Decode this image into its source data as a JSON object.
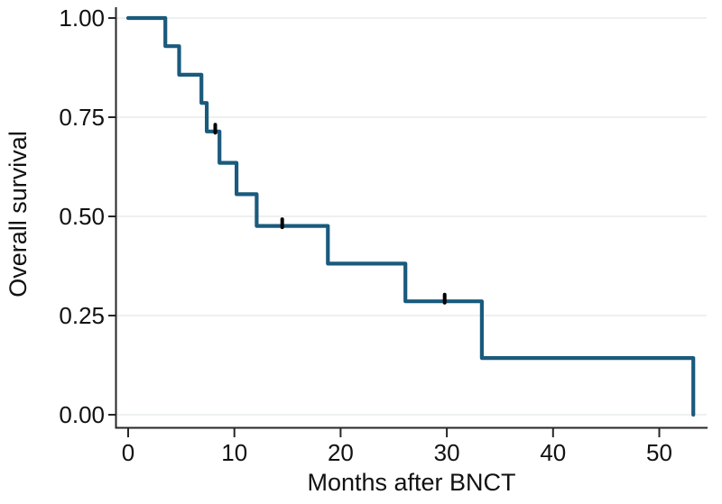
{
  "figure": {
    "background": "#ffffff"
  },
  "chart_data": {
    "type": "line",
    "subtype": "kaplan_meier_step",
    "title": "",
    "xlabel": "Months after BNCT",
    "ylabel": "Overall survival",
    "xlim": [
      0,
      54.5
    ],
    "ylim": [
      0.0,
      1.0
    ],
    "grid": "horizontal-only",
    "legend_position": "none",
    "x_ticks": [
      {
        "value": 0,
        "label": "0"
      },
      {
        "value": 10,
        "label": "10"
      },
      {
        "value": 20,
        "label": "20"
      },
      {
        "value": 30,
        "label": "30"
      },
      {
        "value": 40,
        "label": "40"
      },
      {
        "value": 50,
        "label": "50"
      }
    ],
    "y_ticks": [
      {
        "value": 0.0,
        "label": "0.00"
      },
      {
        "value": 0.25,
        "label": "0.25"
      },
      {
        "value": 0.5,
        "label": "0.50"
      },
      {
        "value": 0.75,
        "label": "0.75"
      },
      {
        "value": 1.0,
        "label": "1.00"
      }
    ],
    "series": [
      {
        "name": "Overall survival",
        "color": "#1a5a7d",
        "start": {
          "t": 0,
          "s": 1.0
        },
        "events": [
          {
            "t": 3.5,
            "s_after": 0.929
          },
          {
            "t": 4.8,
            "s_after": 0.857
          },
          {
            "t": 6.9,
            "s_after": 0.786
          },
          {
            "t": 7.4,
            "s_after": 0.714
          },
          {
            "t": 8.6,
            "s_after": 0.635
          },
          {
            "t": 10.2,
            "s_after": 0.556
          },
          {
            "t": 12.1,
            "s_after": 0.476
          },
          {
            "t": 18.8,
            "s_after": 0.381
          },
          {
            "t": 26.1,
            "s_after": 0.286
          },
          {
            "t": 33.3,
            "s_after": 0.143
          },
          {
            "t": 53.2,
            "s_after": 0.0
          }
        ],
        "censored": [
          {
            "t": 8.2,
            "s": 0.714
          },
          {
            "t": 14.5,
            "s": 0.476
          },
          {
            "t": 29.8,
            "s": 0.286
          }
        ],
        "censor_color": "#000000"
      }
    ],
    "colors": {
      "gridline": "#edf1f0",
      "axis": "#262626",
      "text": "#111111"
    }
  }
}
